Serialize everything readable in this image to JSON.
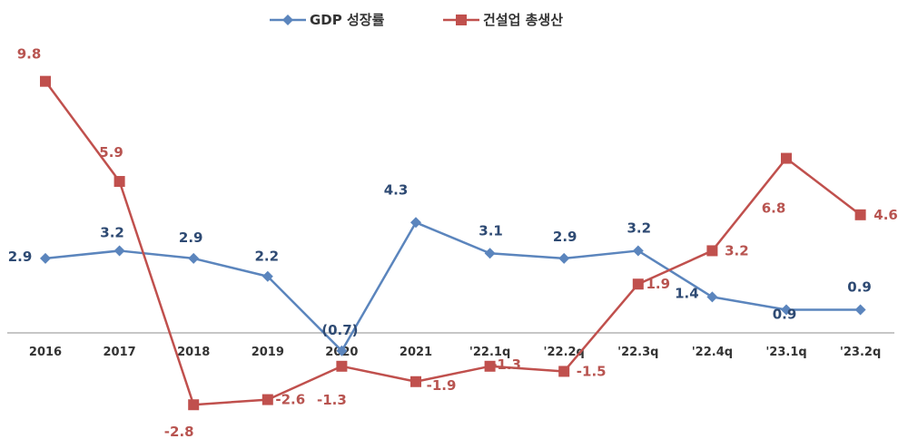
{
  "chart_data": {
    "type": "line",
    "title": "",
    "xlabel": "",
    "ylabel": "",
    "ylim": [
      -3.5,
      10.5
    ],
    "grid": false,
    "legend_position": "top",
    "categories": [
      "2016",
      "2017",
      "2018",
      "2019",
      "2020",
      "2021",
      "'22.1q",
      "'22.2q",
      "'22.3q",
      "'22.4q",
      "'23.1q",
      "'23.2q"
    ],
    "series": [
      {
        "name": "GDP 성장률",
        "color": "#5b85bd",
        "marker": "diamond",
        "values": [
          2.9,
          3.2,
          2.9,
          2.2,
          -0.7,
          4.3,
          3.1,
          2.9,
          3.2,
          1.4,
          0.9,
          0.9
        ],
        "labels": [
          "2.9",
          "3.2",
          "2.9",
          "2.2",
          "(0.7)",
          "4.3",
          "3.1",
          "2.9",
          "3.2",
          "1.4",
          "0.9",
          "0.9"
        ]
      },
      {
        "name": "건설업 총생산",
        "color": "#c0504d",
        "marker": "square",
        "values": [
          9.8,
          5.9,
          -2.8,
          -2.6,
          -1.3,
          -1.9,
          -1.3,
          -1.5,
          1.9,
          3.2,
          6.8,
          4.6
        ],
        "labels": [
          "9.8",
          "5.9",
          "-2.8",
          "-2.6",
          "-1.3",
          "-1.9",
          "-1.3",
          "-1.5",
          "1.9",
          "3.2",
          "6.8",
          "4.6"
        ]
      }
    ]
  }
}
